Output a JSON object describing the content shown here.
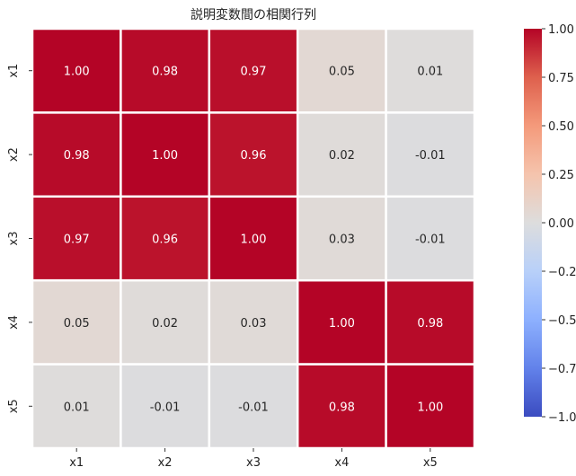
{
  "chart_data": {
    "type": "heatmap",
    "title": "説明変数間の相関行列",
    "xlabel": "",
    "ylabel": "",
    "x_categories": [
      "x1",
      "x2",
      "x3",
      "x4",
      "x5"
    ],
    "y_categories": [
      "x1",
      "x2",
      "x3",
      "x4",
      "x5"
    ],
    "values": [
      [
        1.0,
        0.98,
        0.97,
        0.05,
        0.01
      ],
      [
        0.98,
        1.0,
        0.96,
        0.02,
        -0.01
      ],
      [
        0.97,
        0.96,
        1.0,
        0.03,
        -0.01
      ],
      [
        0.05,
        0.02,
        0.03,
        1.0,
        0.98
      ],
      [
        0.01,
        -0.01,
        -0.01,
        0.98,
        1.0
      ]
    ],
    "annotations": [
      [
        "1.00",
        "0.98",
        "0.97",
        "0.05",
        "0.01"
      ],
      [
        "0.98",
        "1.00",
        "0.96",
        "0.02",
        "-0.01"
      ],
      [
        "0.97",
        "0.96",
        "1.00",
        "0.03",
        "-0.01"
      ],
      [
        "0.05",
        "0.02",
        "0.03",
        "1.00",
        "0.98"
      ],
      [
        "0.01",
        "-0.01",
        "-0.01",
        "0.98",
        "1.00"
      ]
    ],
    "colormap": "coolwarm",
    "vmin": -1.0,
    "vmax": 1.0,
    "colorbar_ticks": [
      "1.00",
      "0.75",
      "0.50",
      "0.25",
      "0.00",
      "−0.25",
      "−0.50",
      "−0.75",
      "−1.00"
    ],
    "colorbar_tick_values": [
      1.0,
      0.75,
      0.5,
      0.25,
      0.0,
      -0.25,
      -0.5,
      -0.75,
      -1.0
    ],
    "cell_border_color": "#ffffff",
    "legend": "colorbar at right"
  }
}
